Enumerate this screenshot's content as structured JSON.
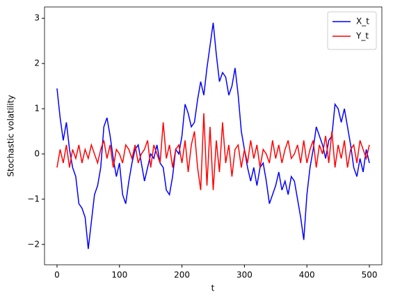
{
  "chart_data": {
    "type": "line",
    "xlabel": "t",
    "ylabel": "Stochastic volatility",
    "xlim": [
      -20,
      520
    ],
    "ylim": [
      -2.45,
      3.25
    ],
    "xticks": [
      0,
      100,
      200,
      300,
      400,
      500
    ],
    "yticks": [
      {
        "value": -2,
        "label": "−2"
      },
      {
        "value": -1,
        "label": "−1"
      },
      0,
      1,
      2,
      3
    ],
    "legend": "upper right",
    "x": [
      0,
      5,
      10,
      15,
      20,
      25,
      30,
      35,
      40,
      45,
      50,
      55,
      60,
      65,
      70,
      75,
      80,
      85,
      90,
      95,
      100,
      105,
      110,
      115,
      120,
      125,
      130,
      135,
      140,
      145,
      150,
      155,
      160,
      165,
      170,
      175,
      180,
      185,
      190,
      195,
      200,
      205,
      210,
      215,
      220,
      225,
      230,
      235,
      240,
      245,
      250,
      255,
      260,
      265,
      270,
      275,
      280,
      285,
      290,
      295,
      300,
      305,
      310,
      315,
      320,
      325,
      330,
      335,
      340,
      345,
      350,
      355,
      360,
      365,
      370,
      375,
      380,
      385,
      390,
      395,
      400,
      405,
      410,
      415,
      420,
      425,
      430,
      435,
      440,
      445,
      450,
      455,
      460,
      465,
      470,
      475,
      480,
      485,
      490,
      495,
      500
    ],
    "series": [
      {
        "name": "X_t",
        "color": "#0000ff",
        "values": [
          1.45,
          0.8,
          0.3,
          0.7,
          0.1,
          -0.3,
          -0.5,
          -1.1,
          -1.2,
          -1.4,
          -2.1,
          -1.5,
          -0.9,
          -0.7,
          -0.3,
          0.6,
          0.8,
          0.4,
          -0.1,
          -0.5,
          -0.2,
          -0.9,
          -1.1,
          -0.6,
          -0.2,
          0.1,
          0.2,
          -0.2,
          -0.6,
          -0.3,
          0,
          -0.1,
          0.2,
          -0.2,
          -0.3,
          -0.8,
          -0.9,
          -0.5,
          0.1,
          0,
          0.4,
          1.1,
          0.9,
          0.6,
          0.7,
          1.2,
          1.6,
          1.3,
          1.9,
          2.4,
          2.9,
          2.2,
          1.6,
          1.8,
          1.7,
          1.3,
          1.5,
          1.9,
          1.3,
          0.5,
          0.1,
          -0.3,
          -0.6,
          -0.3,
          -0.7,
          -0.3,
          -0.2,
          -0.6,
          -1.1,
          -0.9,
          -0.7,
          -0.4,
          -0.8,
          -0.6,
          -0.9,
          -0.5,
          -0.6,
          -1.0,
          -1.4,
          -1.9,
          -0.9,
          -0.3,
          0.1,
          0.6,
          0.4,
          0.2,
          -0.1,
          0.3,
          0.4,
          1.1,
          1.0,
          0.7,
          1.0,
          0.6,
          0.2,
          -0.3,
          -0.5,
          -0.1,
          -0.4,
          0.1,
          -0.2
        ]
      },
      {
        "name": "Y_t",
        "color": "#ff0000",
        "values": [
          -0.3,
          0.1,
          -0.2,
          0.2,
          -0.3,
          0.1,
          -0.1,
          0.2,
          -0.2,
          0.1,
          -0.1,
          0.2,
          0,
          -0.2,
          0.1,
          0.3,
          -0.1,
          0.2,
          -0.3,
          0.1,
          0,
          -0.2,
          0.2,
          0.1,
          -0.1,
          0.2,
          -0.2,
          0,
          0.1,
          0.3,
          -0.3,
          0.2,
          0,
          -0.2,
          0.7,
          -0.1,
          0.2,
          -0.3,
          0.1,
          0.2,
          -0.2,
          0.3,
          -0.4,
          0.2,
          0.5,
          -0.3,
          -0.8,
          0.9,
          -0.7,
          0.6,
          -0.8,
          0.3,
          -0.4,
          0.7,
          -0.2,
          0.2,
          -0.5,
          0.1,
          0.2,
          -0.3,
          0.1,
          -0.2,
          0.3,
          -0.1,
          0.2,
          -0.3,
          0.1,
          0,
          -0.2,
          0.3,
          -0.1,
          0.2,
          -0.2,
          0.1,
          0.3,
          -0.1,
          0,
          0.2,
          -0.2,
          0.3,
          -0.2,
          0.1,
          0.3,
          -0.3,
          0.2,
          0,
          0.4,
          -0.2,
          0.5,
          -0.3,
          0.2,
          -0.1,
          0.3,
          -0.3,
          0.1,
          0.2,
          -0.2,
          0.3,
          0.1,
          -0.1,
          0.2
        ]
      }
    ]
  }
}
